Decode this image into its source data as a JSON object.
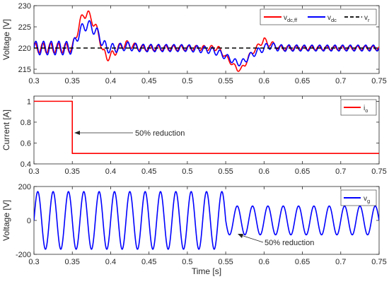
{
  "chart_data": [
    {
      "type": "line",
      "ylabel": "Voltage [V]",
      "xlim": [
        0.3,
        0.75
      ],
      "ylim": [
        214,
        230
      ],
      "xticks": [
        0.3,
        0.35,
        0.4,
        0.45,
        0.5,
        0.55,
        0.6,
        0.65,
        0.7,
        0.75
      ],
      "xticklabels": [
        "0.3",
        "0.35",
        "0.4",
        "0.45",
        "0.5",
        "0.55",
        "0.6",
        "0.65",
        "0.7",
        "0.75"
      ],
      "yticks": [
        215,
        220,
        225,
        230
      ],
      "yticklabels": [
        "215",
        "220",
        "225",
        "230"
      ],
      "legend_position": "top-right",
      "series": [
        {
          "name": "v",
          "sub": "dc,ff",
          "color": "#ff0000",
          "style": "solid",
          "x": [
            0.3,
            0.34,
            0.35,
            0.355,
            0.36,
            0.365,
            0.37,
            0.375,
            0.38,
            0.385,
            0.39,
            0.395,
            0.4,
            0.41,
            0.42,
            0.44,
            0.5,
            0.53,
            0.54,
            0.55,
            0.56,
            0.565,
            0.57,
            0.575,
            0.58,
            0.59,
            0.595,
            0.6,
            0.605,
            0.61,
            0.62,
            0.65,
            0.75
          ],
          "y": [
            220,
            220,
            220,
            223,
            226,
            228,
            228,
            227,
            225,
            223,
            219,
            218,
            218,
            220,
            221,
            220,
            220,
            220,
            220,
            218,
            216,
            215,
            215,
            216,
            218,
            220,
            221,
            222,
            221,
            221,
            220,
            220,
            220
          ],
          "ripple": [
            1.2,
            1.2,
            1.0,
            1.0,
            1.0,
            1.0,
            1.0,
            1.0,
            1.0,
            1.0,
            1.0,
            1.0,
            1.0,
            0.9,
            0.8,
            0.7,
            0.6,
            0.6,
            0.6,
            0.5,
            0.5,
            0.5,
            0.5,
            0.5,
            0.5,
            0.5,
            0.6,
            0.6,
            0.6,
            0.6,
            0.6,
            0.5,
            0.5
          ]
        },
        {
          "name": "v",
          "sub": "dc",
          "color": "#0000ff",
          "style": "solid",
          "x": [
            0.3,
            0.34,
            0.35,
            0.355,
            0.36,
            0.365,
            0.37,
            0.375,
            0.38,
            0.385,
            0.39,
            0.395,
            0.4,
            0.41,
            0.42,
            0.44,
            0.5,
            0.53,
            0.54,
            0.55,
            0.56,
            0.565,
            0.57,
            0.575,
            0.58,
            0.59,
            0.595,
            0.6,
            0.605,
            0.61,
            0.62,
            0.65,
            0.75
          ],
          "y": [
            220,
            220,
            220,
            222,
            224,
            225,
            225.5,
            225,
            224,
            223,
            221,
            220,
            220,
            220,
            220.5,
            220,
            220,
            219.5,
            219,
            218,
            217,
            216.5,
            216.5,
            217,
            218,
            219,
            219.5,
            220,
            220.5,
            220.5,
            220,
            220,
            220
          ],
          "ripple": [
            1.6,
            1.6,
            1.4,
            1.2,
            1.2,
            1.2,
            1.2,
            1.2,
            1.2,
            1.2,
            1.2,
            1.2,
            1.1,
            1.0,
            1.0,
            0.9,
            0.8,
            0.8,
            0.8,
            0.7,
            0.7,
            0.7,
            0.7,
            0.7,
            0.7,
            0.7,
            0.8,
            0.8,
            0.8,
            0.8,
            0.8,
            0.7,
            0.7
          ]
        },
        {
          "name": "v",
          "sub": "r",
          "color": "#000000",
          "style": "dashed",
          "x": [
            0.3,
            0.75
          ],
          "y": [
            220,
            220
          ],
          "ripple": [
            0,
            0
          ]
        }
      ]
    },
    {
      "type": "line",
      "ylabel": "Current [A]",
      "xlim": [
        0.3,
        0.75
      ],
      "ylim": [
        0.4,
        1.05
      ],
      "xticks": [
        0.3,
        0.35,
        0.4,
        0.45,
        0.5,
        0.55,
        0.6,
        0.65,
        0.7,
        0.75
      ],
      "xticklabels": [
        "0.3",
        "0.35",
        "0.4",
        "0.45",
        "0.5",
        "0.55",
        "0.6",
        "0.65",
        "0.7",
        "0.75"
      ],
      "yticks": [
        0.4,
        0.6,
        0.8,
        1.0
      ],
      "yticklabels": [
        "0.4",
        "0.6",
        "0.8",
        "1"
      ],
      "legend_position": "top-right",
      "annotation": {
        "text": "50% reduction",
        "x": 0.35,
        "y": 0.75
      },
      "series": [
        {
          "name": "i",
          "sub": "o",
          "color": "#ff0000",
          "style": "solid",
          "x": [
            0.3,
            0.35,
            0.35,
            0.75
          ],
          "y": [
            1.0,
            1.0,
            0.5,
            0.5
          ]
        }
      ]
    },
    {
      "type": "line",
      "ylabel": "Voltage [V]",
      "xlabel": "Time [s]",
      "xlim": [
        0.3,
        0.75
      ],
      "ylim": [
        -200,
        200
      ],
      "xticks": [
        0.3,
        0.35,
        0.4,
        0.45,
        0.5,
        0.55,
        0.6,
        0.65,
        0.7,
        0.75
      ],
      "xticklabels": [
        "0.3",
        "0.35",
        "0.4",
        "0.45",
        "0.5",
        "0.55",
        "0.6",
        "0.65",
        "0.7",
        "0.75"
      ],
      "yticks": [
        -200,
        0,
        200
      ],
      "yticklabels": [
        "-200",
        "0",
        "200"
      ],
      "legend_position": "top-right",
      "annotation": {
        "text": "50% reduction",
        "x": 0.565,
        "y": -85
      },
      "series": [
        {
          "name": "v",
          "sub": "g",
          "color": "#0000ff",
          "style": "solid",
          "frequency_hz": 50,
          "amplitude_before": 170,
          "amplitude_after": 85,
          "step_time": 0.55,
          "x_range": [
            0.3,
            0.75
          ]
        }
      ]
    }
  ]
}
